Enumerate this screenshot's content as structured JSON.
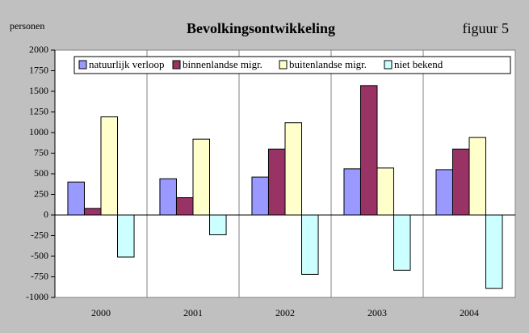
{
  "chart_data": {
    "type": "bar",
    "title": "Bevolkingsontwikkeling",
    "subtitle": "figuur 5",
    "y_label": "personen",
    "categories": [
      "2000",
      "2001",
      "2002",
      "2003",
      "2004"
    ],
    "series": [
      {
        "name": "natuurlijk verloop",
        "color": "#9999ff",
        "values": [
          400,
          440,
          460,
          560,
          550
        ]
      },
      {
        "name": "binnenlandse migr.",
        "color": "#993366",
        "values": [
          80,
          210,
          800,
          1570,
          800
        ]
      },
      {
        "name": "buitenlandse migr.",
        "color": "#ffffcc",
        "values": [
          1190,
          920,
          1120,
          570,
          940
        ]
      },
      {
        "name": "niet bekend",
        "color": "#ccffff",
        "values": [
          -510,
          -240,
          -720,
          -670,
          -890
        ]
      }
    ],
    "ylim": [
      -1000,
      2000
    ],
    "yticks": [
      -1000,
      -750,
      -500,
      -250,
      0,
      250,
      500,
      750,
      1000,
      1250,
      1500,
      1750,
      2000
    ],
    "legend": "top"
  }
}
